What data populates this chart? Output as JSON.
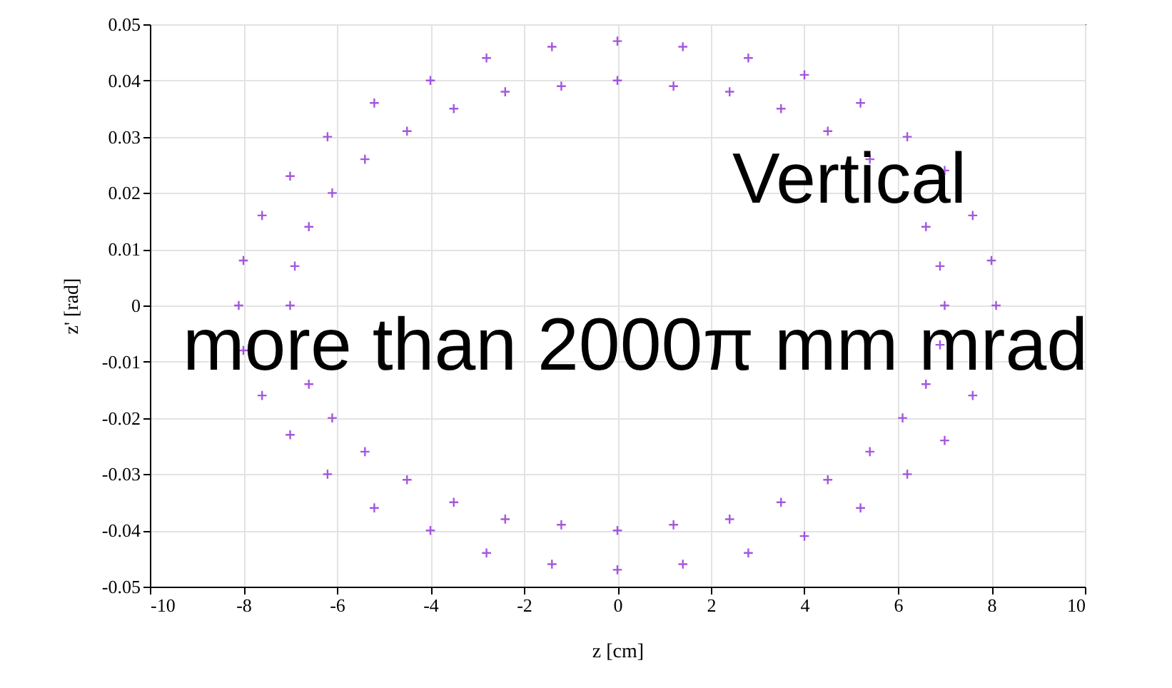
{
  "chart_data": {
    "type": "scatter",
    "xlabel": "z [cm]",
    "ylabel": "z' [rad]",
    "xlim": [
      -10,
      10
    ],
    "ylim": [
      -0.05,
      0.05
    ],
    "xticks": [
      -10,
      -8,
      -6,
      -4,
      -2,
      0,
      2,
      4,
      6,
      8,
      10
    ],
    "yticks": [
      -0.05,
      -0.04,
      -0.03,
      -0.02,
      -0.01,
      0,
      0.01,
      0.02,
      0.03,
      0.04,
      0.05
    ],
    "grid": true,
    "marker": "cross",
    "annotations": [
      "Vertical",
      "more than 2000π mm mrad"
    ],
    "series": [
      {
        "color": "#9b45dc",
        "x": [
          7.0,
          6.9,
          6.6,
          5.4,
          4.5,
          3.5,
          2.4,
          1.2,
          0,
          -1.2,
          -2.4,
          -3.5,
          -4.5,
          -5.4,
          -6.1,
          -6.6,
          -6.9,
          -7.0,
          -6.6,
          -6.1,
          -5.4,
          -4.5,
          -3.5,
          -2.4,
          -1.2,
          0,
          1.2,
          2.4,
          3.5,
          4.5,
          5.4,
          6.1,
          6.6,
          6.9
        ],
        "values": [
          0,
          0.007,
          0.014,
          0.026,
          0.031,
          0.035,
          0.038,
          0.039,
          0.04,
          0.039,
          0.038,
          0.035,
          0.031,
          0.026,
          0.02,
          0.014,
          0.007,
          0,
          -0.014,
          -0.02,
          -0.026,
          -0.031,
          -0.035,
          -0.038,
          -0.039,
          -0.04,
          -0.039,
          -0.038,
          -0.035,
          -0.031,
          -0.026,
          -0.02,
          -0.014,
          -0.007
        ]
      },
      {
        "color": "#9b45dc",
        "x": [
          8.1,
          8.0,
          7.6,
          7.0,
          6.2,
          5.2,
          4.0,
          2.8,
          1.4,
          0,
          -1.4,
          -2.8,
          -4.0,
          -5.2,
          -6.2,
          -7.0,
          -7.6,
          -8.0,
          -8.1,
          -8.0,
          -7.6,
          -7.0,
          -6.2,
          -5.2,
          -4.0,
          -2.8,
          -1.4,
          0,
          1.4,
          2.8,
          4.0,
          5.2,
          6.2,
          7.0,
          7.6
        ],
        "values": [
          0,
          0.008,
          0.016,
          0.024,
          0.03,
          0.036,
          0.041,
          0.044,
          0.046,
          0.047,
          0.046,
          0.044,
          0.04,
          0.036,
          0.03,
          0.023,
          0.016,
          0.008,
          0,
          -0.008,
          -0.016,
          -0.023,
          -0.03,
          -0.036,
          -0.04,
          -0.044,
          -0.046,
          -0.047,
          -0.046,
          -0.044,
          -0.041,
          -0.036,
          -0.03,
          -0.024,
          -0.016
        ]
      }
    ]
  }
}
